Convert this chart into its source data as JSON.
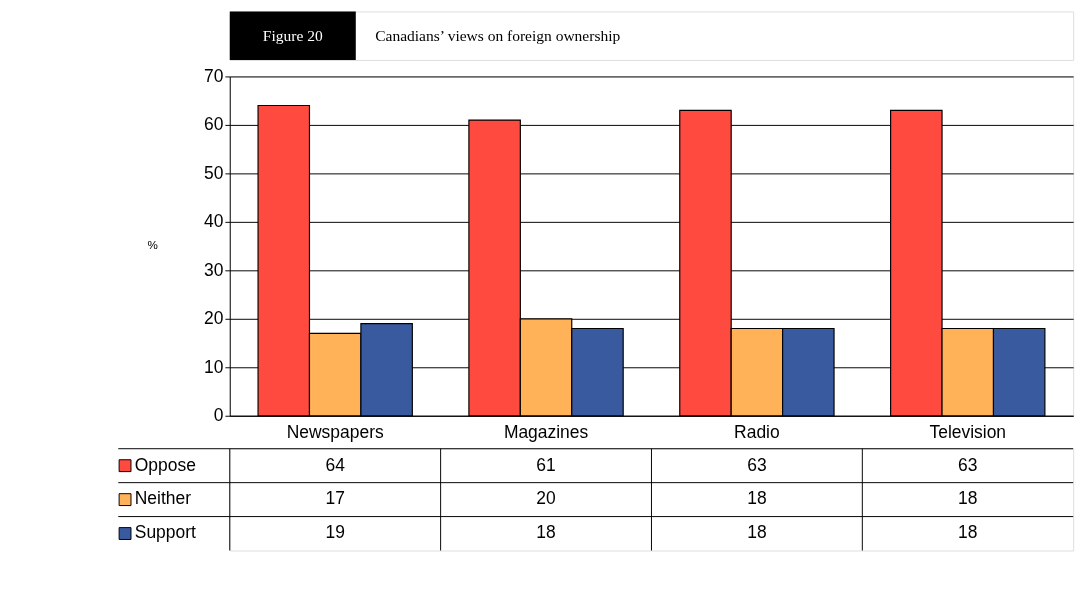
{
  "chart_data": {
    "type": "bar",
    "title": "Canadians’ views on foreign ownership",
    "annotations": [
      "Figure 20"
    ],
    "ylabel": "%",
    "categories": [
      "Newspapers",
      "Magazines",
      "Radio",
      "Television"
    ],
    "series": [
      {
        "name": "Oppose",
        "color": "#ff4a3f",
        "values": [
          64,
          61,
          63,
          63
        ]
      },
      {
        "name": "Neither",
        "color": "#ffb257",
        "values": [
          17,
          20,
          18,
          18
        ]
      },
      {
        "name": "Support",
        "color": "#3a5aa0",
        "values": [
          19,
          18,
          18,
          18
        ]
      }
    ],
    "ylim": [
      0,
      70
    ],
    "yticks": [
      0,
      10,
      20,
      30,
      40,
      50,
      60,
      70
    ],
    "grid": "y",
    "legend": "bottom left",
    "data_labels": true
  }
}
